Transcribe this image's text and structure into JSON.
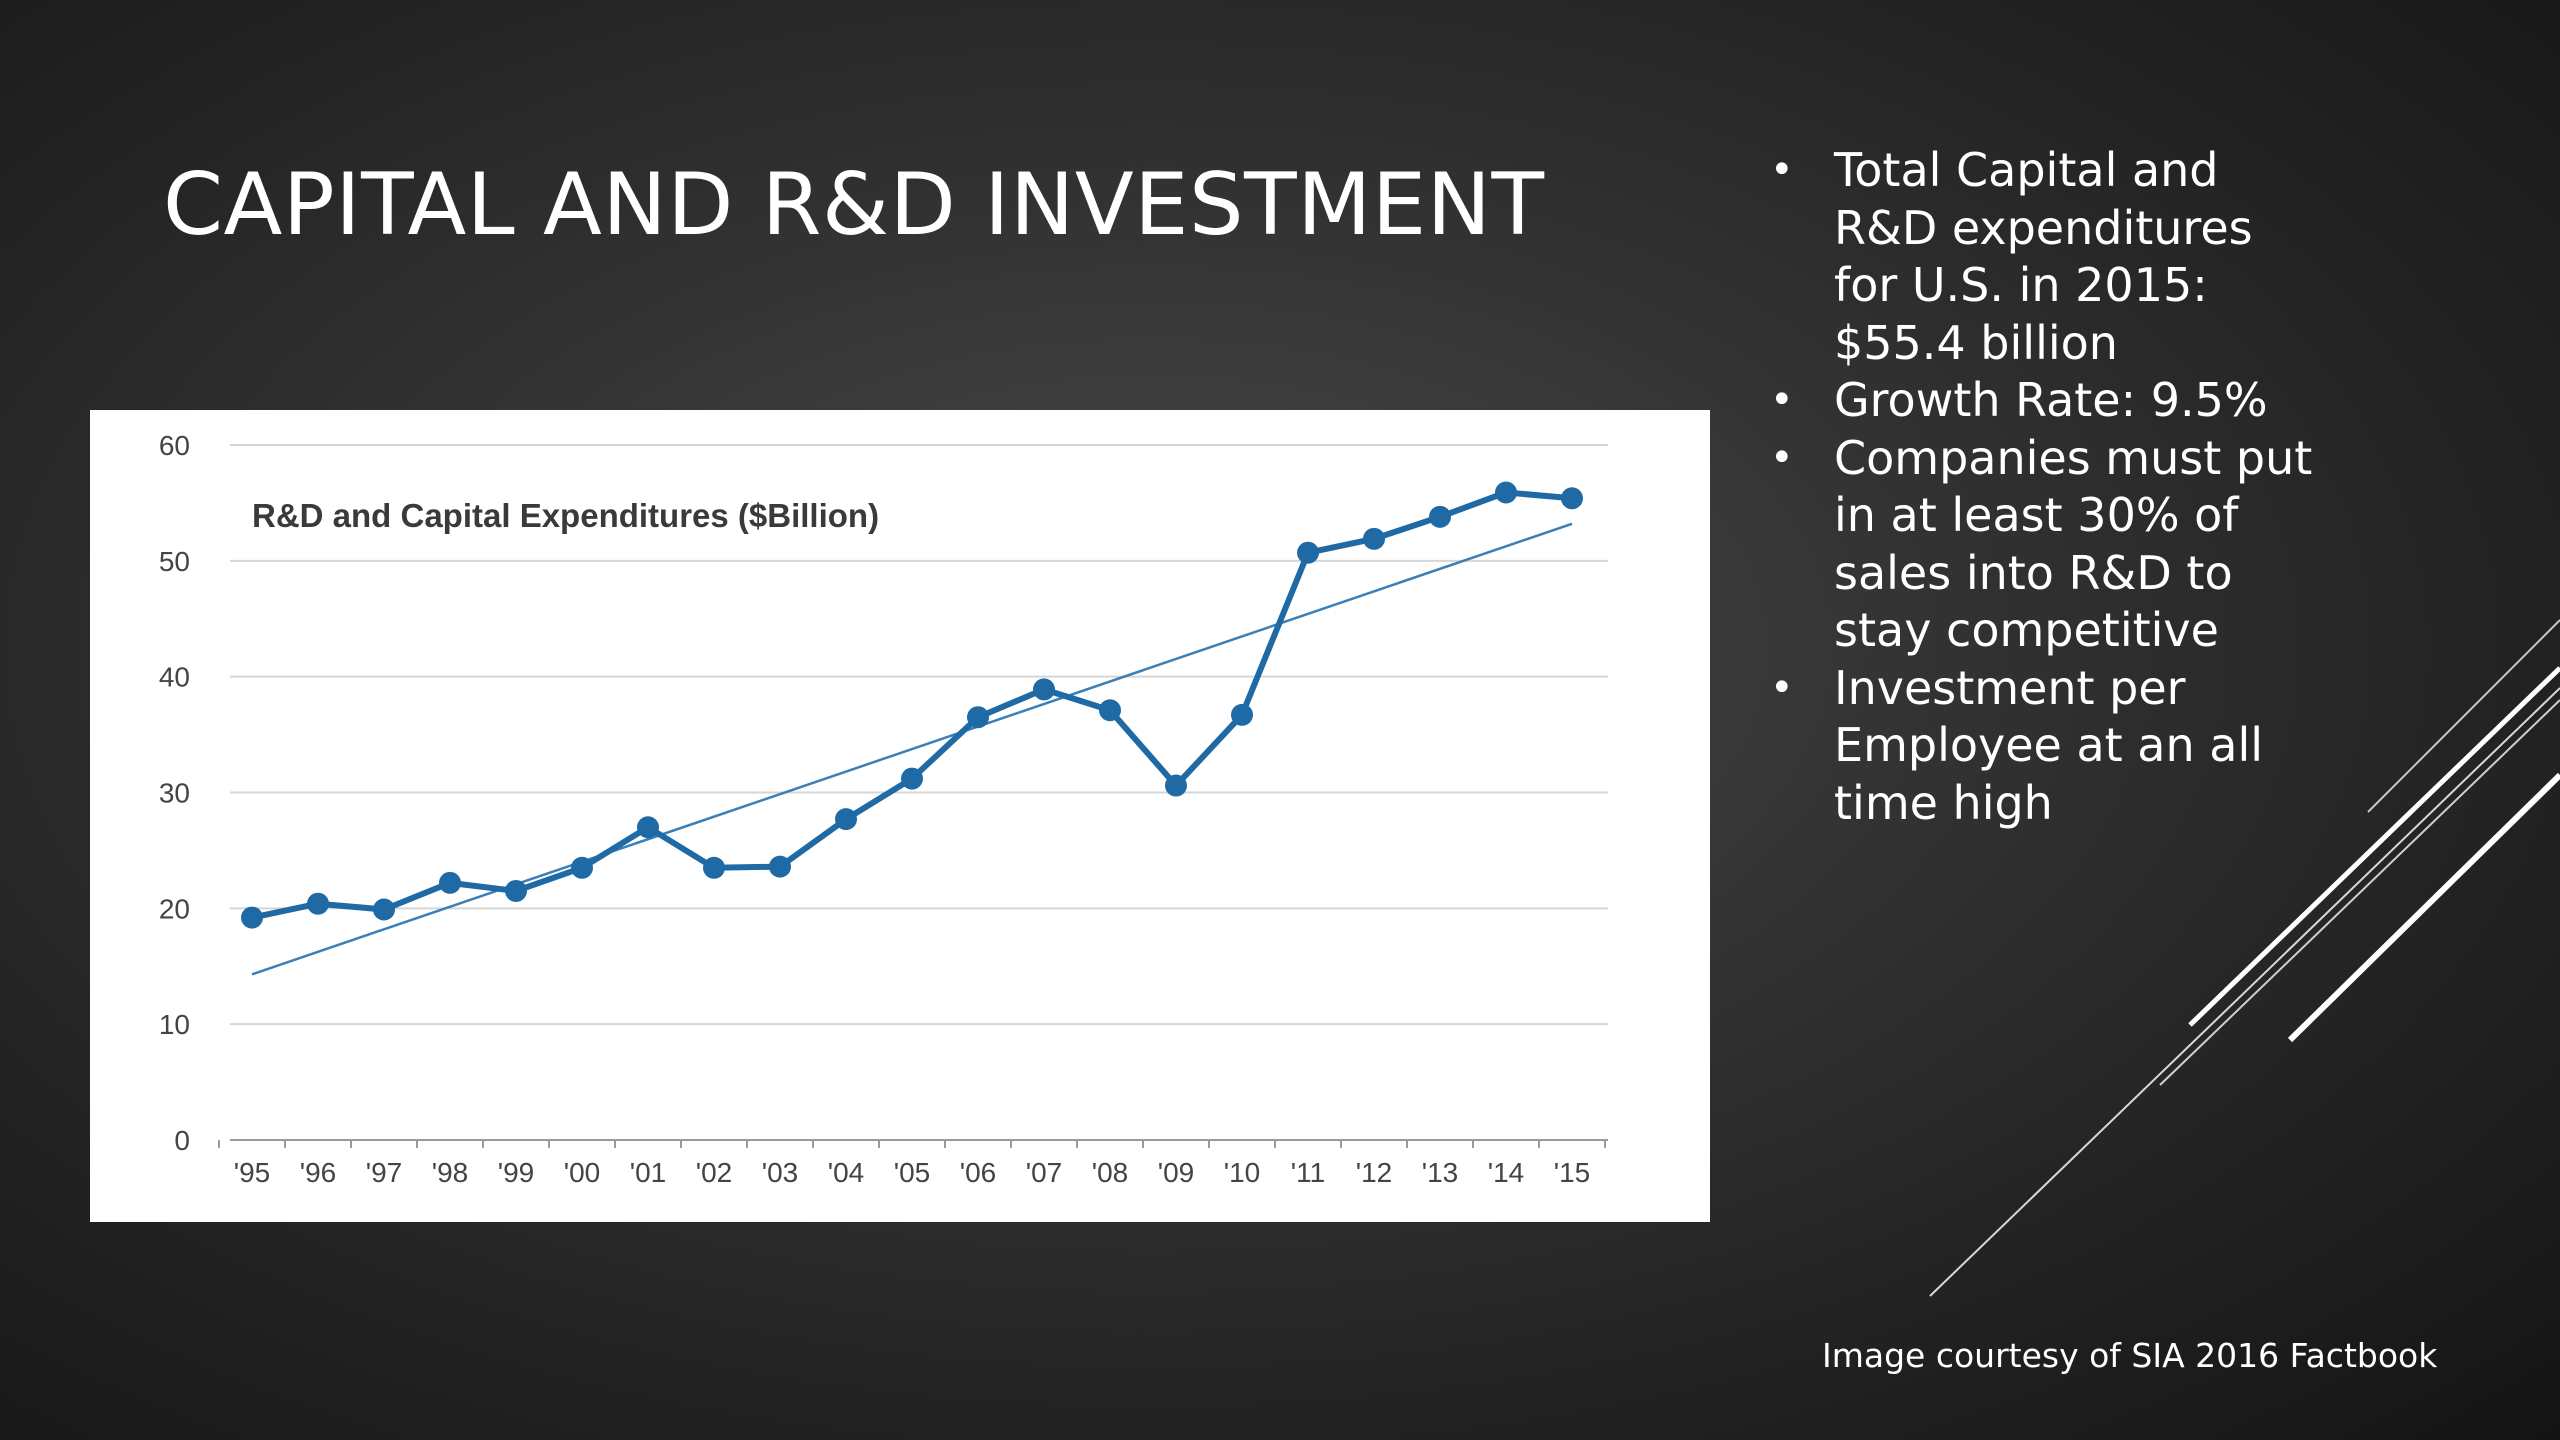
{
  "slide": {
    "title": "CAPITAL AND R&D INVESTMENT",
    "bullets": [
      "Total Capital and R&D expenditures for U.S. in 2015: $55.4 billion",
      "Growth Rate: 9.5%",
      "Companies must put in at least 30% of sales into R&D to stay competitive",
      "Investment per Employee at an all time high"
    ],
    "credit": "Image courtesy of SIA 2016 Factbook"
  },
  "colors": {
    "series": "#1f6aa5",
    "trend": "#3b7fb8",
    "grid": "#d6d6d6",
    "axis_text": "#444444",
    "background": "#2e2e2e",
    "panel": "#ffffff"
  },
  "chart_data": {
    "type": "line",
    "title": "R&D and Capital Expenditures ($Billion)",
    "xlabel": "",
    "ylabel": "",
    "categories": [
      "'95",
      "'96",
      "'97",
      "'98",
      "'99",
      "'00",
      "'01",
      "'02",
      "'03",
      "'04",
      "'05",
      "'06",
      "'07",
      "'08",
      "'09",
      "'10",
      "'11",
      "'12",
      "'13",
      "'14",
      "'15"
    ],
    "series": [
      {
        "values": [
          19.2,
          20.4,
          19.9,
          22.2,
          21.5,
          23.5,
          27.0,
          23.5,
          23.6,
          27.7,
          31.2,
          36.5,
          38.9,
          37.1,
          30.6,
          36.7,
          50.7,
          51.9,
          53.8,
          55.9,
          55.4
        ]
      }
    ],
    "trendline": {
      "type": "linear",
      "start": 14.3,
      "end": 53.2
    },
    "ylim": [
      0,
      60
    ],
    "yticks": [
      0,
      10,
      20,
      30,
      40,
      50,
      60
    ],
    "grid": true,
    "legend": "none"
  }
}
